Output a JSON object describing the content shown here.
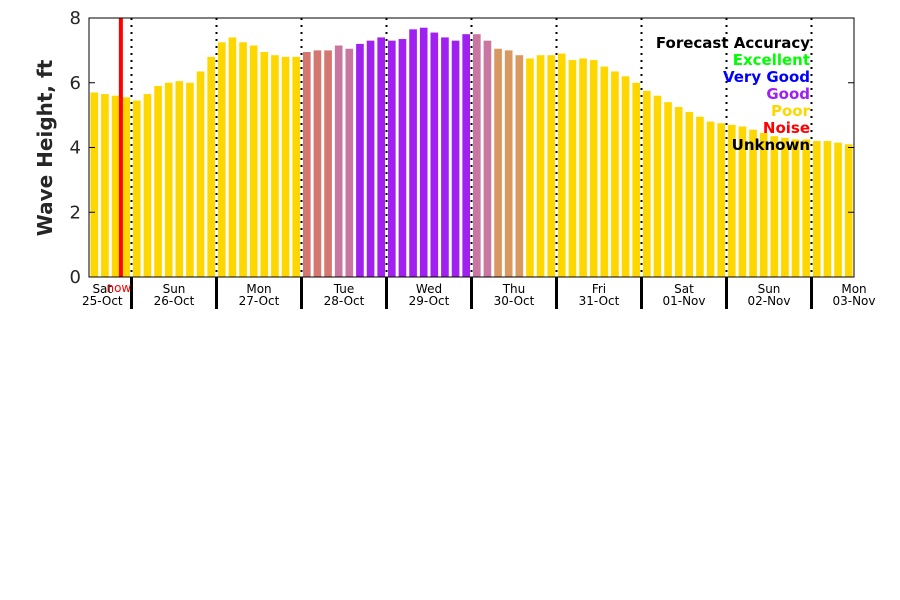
{
  "chart_data": {
    "type": "bar",
    "title": "",
    "ylabel": "Wave Height, ft",
    "xlabel": "",
    "ylim": [
      0,
      8
    ],
    "yticks": [
      "0",
      "2",
      "4",
      "6",
      "8"
    ],
    "now_label": "now",
    "now_index": 2.5,
    "colors": {
      "poor": "#FFD700",
      "good": "#A020F0",
      "poor_good_mix_1": "#D4776E",
      "poor_good_mix_2": "#C976A0",
      "poor_good_mix_3": "#D89860",
      "now_line": "#FF0000"
    },
    "days": [
      {
        "dow": "Sat",
        "date": "25-Oct"
      },
      {
        "dow": "Sun",
        "date": "26-Oct"
      },
      {
        "dow": "Mon",
        "date": "27-Oct"
      },
      {
        "dow": "Tue",
        "date": "28-Oct"
      },
      {
        "dow": "Wed",
        "date": "29-Oct"
      },
      {
        "dow": "Thu",
        "date": "30-Oct"
      },
      {
        "dow": "Fri",
        "date": "31-Oct"
      },
      {
        "dow": "Sat",
        "date": "01-Nov"
      },
      {
        "dow": "Sun",
        "date": "02-Nov"
      },
      {
        "dow": "Mon",
        "date": "03-Nov"
      }
    ],
    "values": [
      5.7,
      5.65,
      5.6,
      5.55,
      5.45,
      5.65,
      5.9,
      6.0,
      6.05,
      6.0,
      6.35,
      6.8,
      7.25,
      7.4,
      7.25,
      7.15,
      6.95,
      6.85,
      6.8,
      6.8,
      6.95,
      7.0,
      7.0,
      7.15,
      7.05,
      7.2,
      7.3,
      7.4,
      7.3,
      7.35,
      7.65,
      7.7,
      7.55,
      7.4,
      7.3,
      7.5,
      7.5,
      7.3,
      7.05,
      7.0,
      6.85,
      6.75,
      6.85,
      6.85,
      6.9,
      6.7,
      6.75,
      6.7,
      6.5,
      6.35,
      6.2,
      6.0,
      5.75,
      5.6,
      5.4,
      5.25,
      5.1,
      4.95,
      4.8,
      4.75,
      4.7,
      4.65,
      4.55,
      4.45,
      4.35,
      4.3,
      4.25,
      4.25,
      4.2,
      4.2,
      4.15,
      4.1
    ],
    "bar_colors": [
      "poor",
      "poor",
      "poor",
      "poor",
      "poor",
      "poor",
      "poor",
      "poor",
      "poor",
      "poor",
      "poor",
      "poor",
      "poor",
      "poor",
      "poor",
      "poor",
      "poor",
      "poor",
      "poor",
      "poor",
      "poor_good_mix_1",
      "poor_good_mix_1",
      "poor_good_mix_1",
      "poor_good_mix_2",
      "poor_good_mix_2",
      "good",
      "good",
      "good",
      "good",
      "good",
      "good",
      "good",
      "good",
      "good",
      "good",
      "good",
      "poor_good_mix_2",
      "poor_good_mix_2",
      "poor_good_mix_3",
      "poor_good_mix_3",
      "poor_good_mix_3",
      "poor",
      "poor",
      "poor",
      "poor",
      "poor",
      "poor",
      "poor",
      "poor",
      "poor",
      "poor",
      "poor",
      "poor",
      "poor",
      "poor",
      "poor",
      "poor",
      "poor",
      "poor",
      "poor",
      "poor",
      "poor",
      "poor",
      "poor",
      "poor",
      "poor",
      "poor",
      "poor",
      "poor",
      "poor",
      "poor",
      "poor"
    ],
    "legend": {
      "placement": "top-right",
      "items": [
        {
          "label": "Forecast Accuracy",
          "color": "#000000"
        },
        {
          "label": "Excellent",
          "color": "#00FF00"
        },
        {
          "label": "Very Good",
          "color": "#0000FF"
        },
        {
          "label": "Good",
          "color": "#A020F0"
        },
        {
          "label": "Poor",
          "color": "#FFD700"
        },
        {
          "label": "Noise",
          "color": "#FF0000"
        },
        {
          "label": "Unknown",
          "color": "#000000"
        }
      ]
    }
  }
}
